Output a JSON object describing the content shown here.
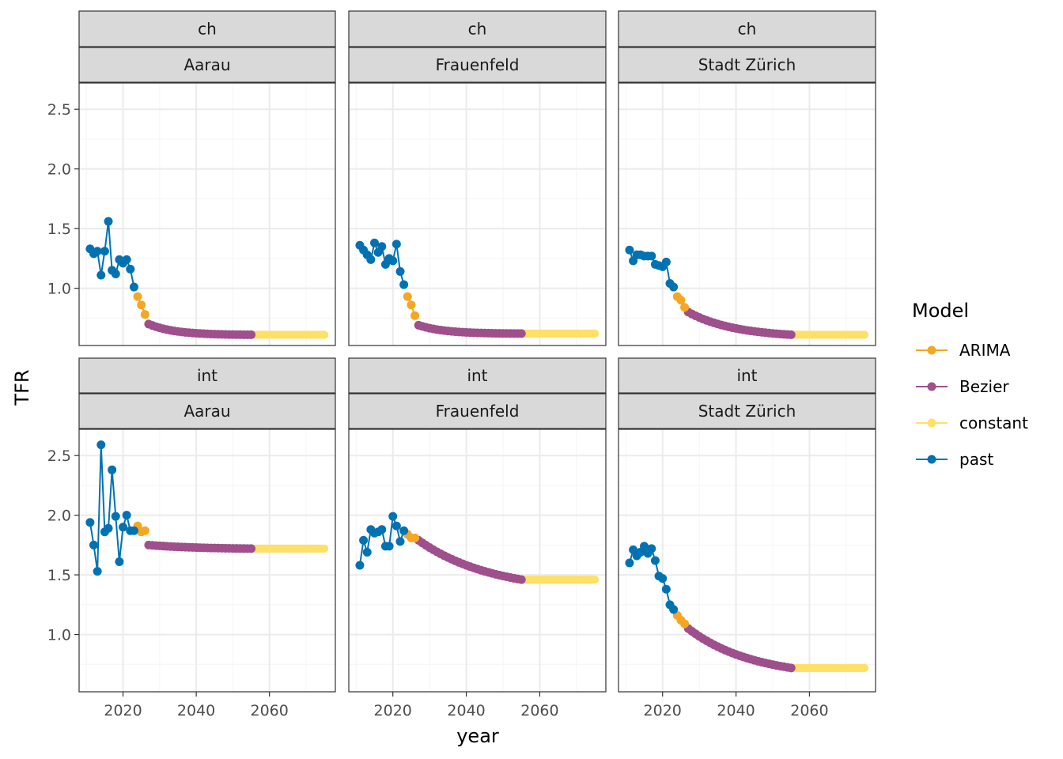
{
  "chart_data": {
    "type": "line",
    "xlabel": "year",
    "ylabel": "TFR",
    "xlim": [
      2008,
      2078
    ],
    "ylim": [
      0.52,
      2.72
    ],
    "x_ticks": [
      2020,
      2040,
      2060
    ],
    "y_ticks": [
      1.0,
      1.5,
      2.0,
      2.5
    ],
    "y_tick_labels": [
      "1.0",
      "1.5",
      "2.0",
      "2.5"
    ],
    "grid": true,
    "legend": {
      "title": "Model",
      "position": "right",
      "entries": [
        "ARIMA",
        "Bezier",
        "constant",
        "past"
      ]
    },
    "colors": {
      "ARIMA": "#F5A623",
      "Bezier": "#9E4F8C",
      "constant": "#FFE066",
      "past": "#0072B2",
      "strip_bg": "#D9D9D9",
      "grid_major": "#EBEBEB",
      "grid_minor": "#F5F5F5",
      "border": "#333333"
    },
    "panels": [
      {
        "row_strip": "ch",
        "col_strip": "Aarau",
        "past": {
          "x": [
            2011,
            2012,
            2013,
            2014,
            2015,
            2016,
            2017,
            2018,
            2019,
            2020,
            2021,
            2022,
            2023
          ],
          "y": [
            1.33,
            1.29,
            1.31,
            1.11,
            1.31,
            1.56,
            1.15,
            1.12,
            1.24,
            1.21,
            1.24,
            1.16,
            1.01
          ]
        },
        "arima": {
          "x": [
            2024,
            2025,
            2026
          ],
          "y": [
            0.93,
            0.86,
            0.78
          ]
        },
        "bezier": {
          "start": [
            2027,
            0.7
          ],
          "end": [
            2055,
            0.61
          ],
          "curvature": 4
        },
        "constant": {
          "x_start": 2056,
          "x_end": 2075,
          "y": 0.61
        }
      },
      {
        "row_strip": "ch",
        "col_strip": "Frauenfeld",
        "past": {
          "x": [
            2011,
            2012,
            2013,
            2014,
            2015,
            2016,
            2017,
            2018,
            2019,
            2020,
            2021,
            2022,
            2023
          ],
          "y": [
            1.36,
            1.32,
            1.28,
            1.24,
            1.38,
            1.3,
            1.35,
            1.2,
            1.25,
            1.23,
            1.37,
            1.14,
            1.03
          ]
        },
        "arima": {
          "x": [
            2024,
            2025,
            2026
          ],
          "y": [
            0.93,
            0.86,
            0.77
          ]
        },
        "bezier": {
          "start": [
            2027,
            0.69
          ],
          "end": [
            2055,
            0.62
          ],
          "curvature": 4
        },
        "constant": {
          "x_start": 2056,
          "x_end": 2075,
          "y": 0.62
        }
      },
      {
        "row_strip": "ch",
        "col_strip": "Stadt Zürich",
        "past": {
          "x": [
            2011,
            2012,
            2013,
            2014,
            2015,
            2016,
            2017,
            2018,
            2019,
            2020,
            2021,
            2022,
            2023
          ],
          "y": [
            1.32,
            1.23,
            1.28,
            1.28,
            1.27,
            1.27,
            1.27,
            1.2,
            1.19,
            1.18,
            1.22,
            1.04,
            1.01
          ]
        },
        "arima": {
          "x": [
            2024,
            2025,
            2026
          ],
          "y": [
            0.93,
            0.9,
            0.84
          ]
        },
        "bezier": {
          "start": [
            2027,
            0.8
          ],
          "end": [
            2055,
            0.61
          ],
          "curvature": 2.2
        },
        "constant": {
          "x_start": 2056,
          "x_end": 2075,
          "y": 0.61
        }
      },
      {
        "row_strip": "int",
        "col_strip": "Aarau",
        "past": {
          "x": [
            2011,
            2012,
            2013,
            2014,
            2015,
            2016,
            2017,
            2018,
            2019,
            2020,
            2021,
            2022,
            2023
          ],
          "y": [
            1.94,
            1.75,
            1.53,
            2.59,
            1.86,
            1.89,
            2.38,
            1.99,
            1.61,
            1.9,
            2.0,
            1.87,
            1.87
          ]
        },
        "arima": {
          "x": [
            2024,
            2025,
            2026
          ],
          "y": [
            1.91,
            1.86,
            1.87
          ]
        },
        "bezier": {
          "start": [
            2027,
            1.75
          ],
          "end": [
            2055,
            1.72
          ],
          "curvature": 2
        },
        "constant": {
          "x_start": 2056,
          "x_end": 2075,
          "y": 1.72
        }
      },
      {
        "row_strip": "int",
        "col_strip": "Frauenfeld",
        "past": {
          "x": [
            2011,
            2012,
            2013,
            2014,
            2015,
            2016,
            2017,
            2018,
            2019,
            2020,
            2021,
            2022,
            2023
          ],
          "y": [
            1.58,
            1.79,
            1.69,
            1.88,
            1.85,
            1.86,
            1.88,
            1.74,
            1.74,
            1.99,
            1.91,
            1.78,
            1.87
          ]
        },
        "arima": {
          "x": [
            2024,
            2025,
            2026
          ],
          "y": [
            1.84,
            1.81,
            1.81
          ]
        },
        "bezier": {
          "start": [
            2027,
            1.79
          ],
          "end": [
            2055,
            1.46
          ],
          "curvature": 1.4
        },
        "constant": {
          "x_start": 2056,
          "x_end": 2075,
          "y": 1.46
        }
      },
      {
        "row_strip": "int",
        "col_strip": "Stadt Zürich",
        "past": {
          "x": [
            2011,
            2012,
            2013,
            2014,
            2015,
            2016,
            2017,
            2018,
            2019,
            2020,
            2021,
            2022,
            2023
          ],
          "y": [
            1.6,
            1.71,
            1.66,
            1.69,
            1.74,
            1.68,
            1.72,
            1.62,
            1.49,
            1.47,
            1.38,
            1.25,
            1.21
          ]
        },
        "arima": {
          "x": [
            2024,
            2025,
            2026
          ],
          "y": [
            1.16,
            1.12,
            1.09
          ]
        },
        "bezier": {
          "start": [
            2027,
            1.05
          ],
          "end": [
            2055,
            0.72
          ],
          "curvature": 1.6
        },
        "constant": {
          "x_start": 2056,
          "x_end": 2075,
          "y": 0.72
        }
      }
    ]
  }
}
